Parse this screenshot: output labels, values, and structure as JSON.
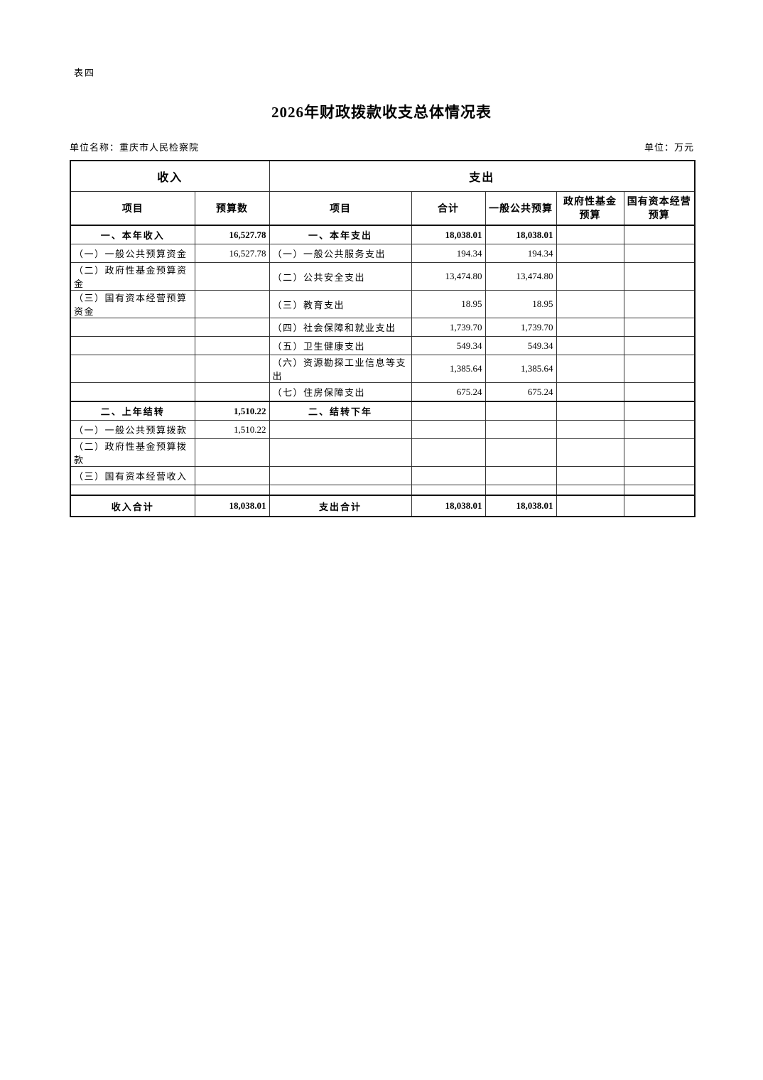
{
  "page": {
    "sheet_label": "表四",
    "title": "2026年财政拨款收支总体情况表",
    "unit_name": "单位名称：重庆市人民检察院",
    "unit": "单位：万元"
  },
  "table": {
    "income_header": "收入",
    "expenditure_header": "支出",
    "columns": [
      "项目",
      "预算数",
      "项目",
      "合计",
      "一般公共预算",
      "政府性基金预算",
      "国有资本经营预算"
    ],
    "rows": [
      [
        "一、本年收入",
        "16,527.78",
        "一、本年支出",
        "18,038.01",
        "18,038.01",
        "",
        ""
      ],
      [
        "（一）一般公共预算资金",
        "16,527.78",
        "（一）一般公共服务支出",
        "194.34",
        "194.34",
        "",
        ""
      ],
      [
        "（二）政府性基金预算资金",
        "",
        "（二）公共安全支出",
        "13,474.80",
        "13,474.80",
        "",
        ""
      ],
      [
        "（三）国有资本经营预算资金",
        "",
        "（三）教育支出",
        "18.95",
        "18.95",
        "",
        ""
      ],
      [
        "",
        "",
        "（四）社会保障和就业支出",
        "1,739.70",
        "1,739.70",
        "",
        ""
      ],
      [
        "",
        "",
        "（五）卫生健康支出",
        "549.34",
        "549.34",
        "",
        ""
      ],
      [
        "",
        "",
        "（六）资源勘探工业信息等支出",
        "1,385.64",
        "1,385.64",
        "",
        ""
      ],
      [
        "",
        "",
        "（七）住房保障支出",
        "675.24",
        "675.24",
        "",
        ""
      ],
      [
        "二、上年结转",
        "1,510.22",
        "二、结转下年",
        "",
        "",
        "",
        ""
      ],
      [
        "（一）一般公共预算拨款",
        "1,510.22",
        "",
        "",
        "",
        "",
        ""
      ],
      [
        "（二）政府性基金预算拨款",
        "",
        "",
        "",
        "",
        "",
        ""
      ],
      [
        "（三）国有资本经营收入",
        "",
        "",
        "",
        "",
        "",
        ""
      ],
      [
        "",
        "",
        "",
        "",
        "",
        "",
        ""
      ],
      [
        "收入合计",
        "18,038.01",
        "支出合计",
        "18,038.01",
        "18,038.01",
        "",
        ""
      ]
    ]
  }
}
